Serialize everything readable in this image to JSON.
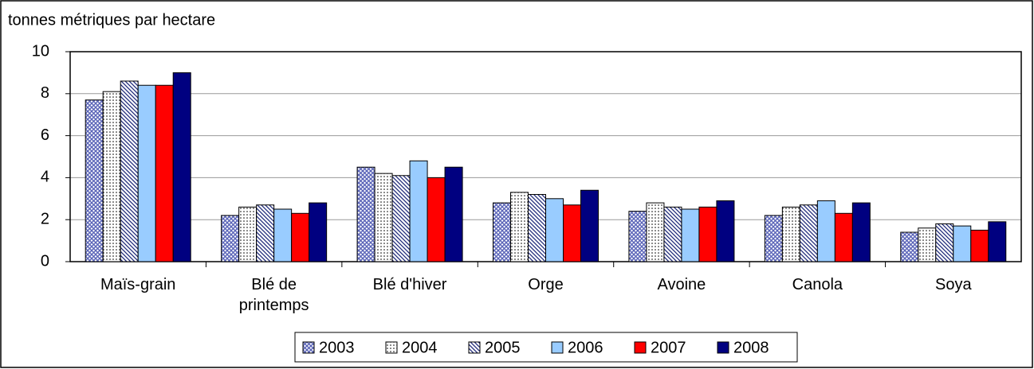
{
  "chart_data": {
    "type": "bar",
    "y_axis_label": "tonnes métriques par hectare",
    "categories": [
      "Maïs-grain",
      "Blé de printemps",
      "Blé d'hiver",
      "Orge",
      "Avoine",
      "Canola",
      "Soya"
    ],
    "series": [
      {
        "name": "2003",
        "color": "#5a64b8",
        "pattern": "crosshatch",
        "values": [
          7.7,
          2.2,
          4.5,
          2.8,
          2.4,
          2.2,
          1.4
        ]
      },
      {
        "name": "2004",
        "color": "#000000",
        "pattern": "dots",
        "values": [
          8.1,
          2.6,
          4.2,
          3.3,
          2.8,
          2.6,
          1.6
        ]
      },
      {
        "name": "2005",
        "color": "#1f2a7a",
        "pattern": "diagonal",
        "values": [
          8.6,
          2.7,
          4.1,
          3.2,
          2.6,
          2.7,
          1.8
        ]
      },
      {
        "name": "2006",
        "color": "#99ccff",
        "pattern": "solid",
        "values": [
          8.4,
          2.5,
          4.8,
          3.0,
          2.5,
          2.9,
          1.7
        ]
      },
      {
        "name": "2007",
        "color": "#ff0000",
        "pattern": "solid",
        "values": [
          8.4,
          2.3,
          4.0,
          2.7,
          2.6,
          2.3,
          1.5
        ]
      },
      {
        "name": "2008",
        "color": "#000080",
        "pattern": "solid",
        "values": [
          9.0,
          2.8,
          4.5,
          3.4,
          2.9,
          2.8,
          1.9
        ]
      }
    ],
    "ylim": [
      0,
      10
    ],
    "yticks": [
      0,
      2,
      4,
      6,
      8,
      10
    ],
    "grid": true,
    "legend": "bottom"
  }
}
